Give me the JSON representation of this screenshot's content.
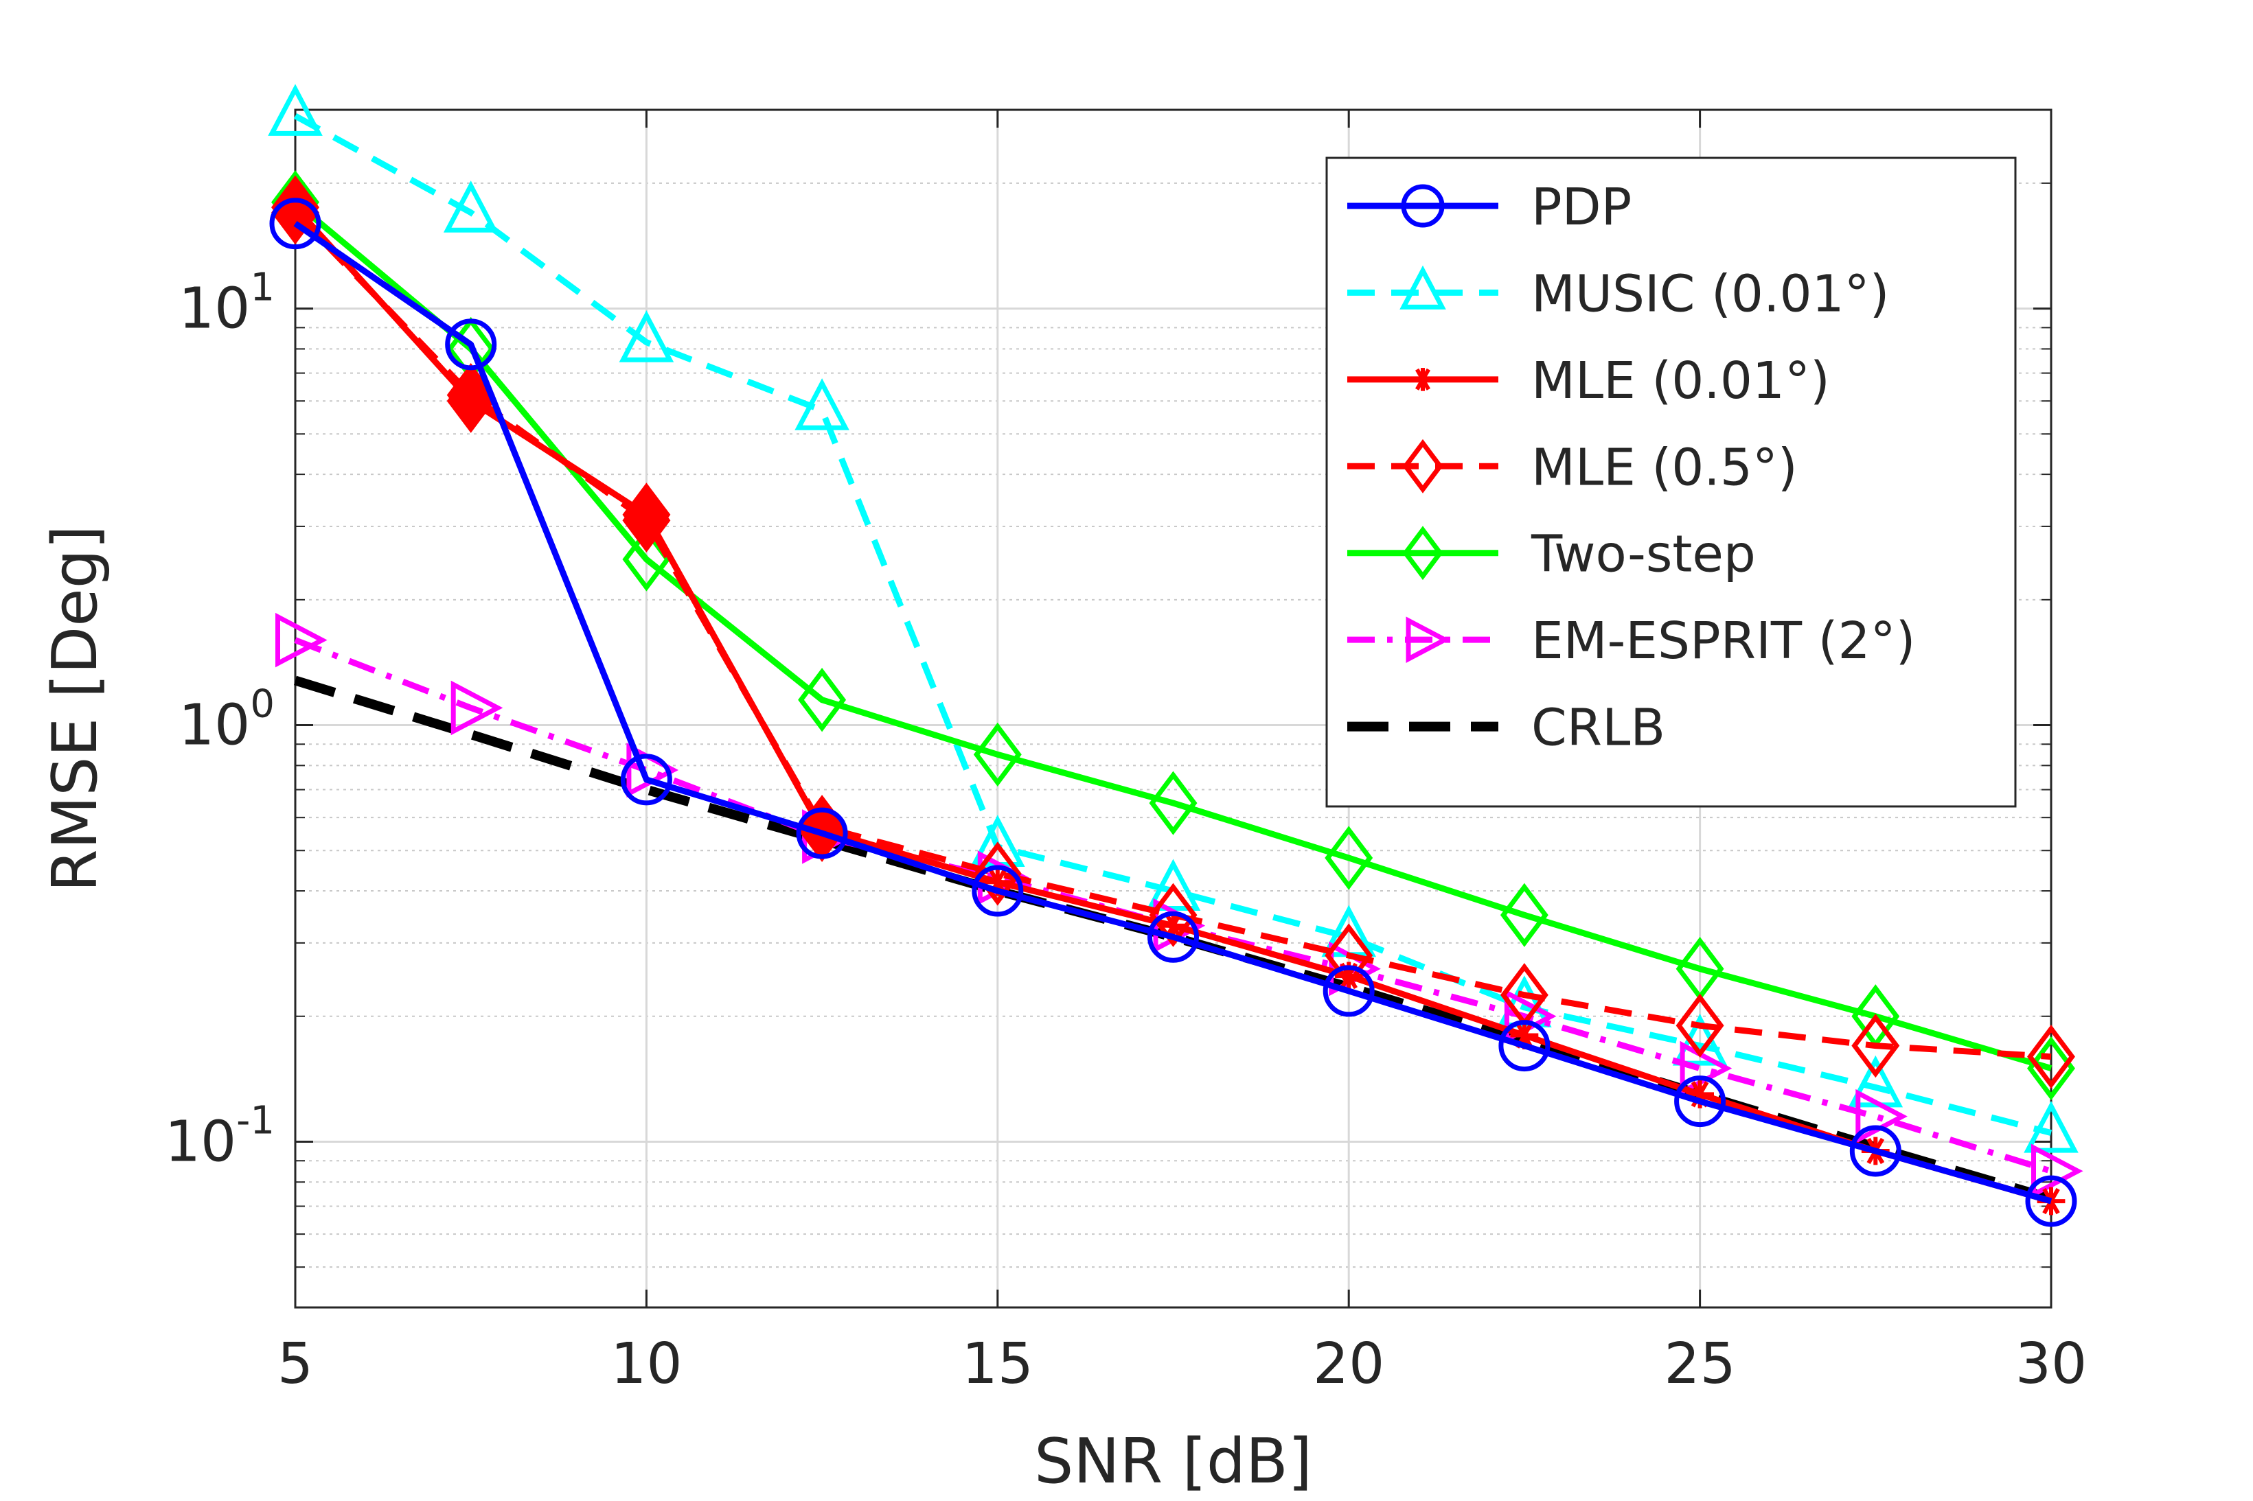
{
  "chart_data": {
    "type": "line",
    "xlabel": "SNR [dB]",
    "ylabel": "RMSE [Deg]",
    "xlim": [
      5,
      30
    ],
    "ylim": [
      0.04,
      30
    ],
    "yscale": "log",
    "grid": true,
    "legend_position": "top-right",
    "x_ticks": [
      "5",
      "10",
      "15",
      "20",
      "25",
      "30"
    ],
    "y_ticks": [
      {
        "base": "10",
        "exp": "-1",
        "value": 0.1
      },
      {
        "base": "10",
        "exp": "0",
        "value": 1
      },
      {
        "base": "10",
        "exp": "1",
        "value": 10
      }
    ],
    "x": [
      5,
      7.5,
      10,
      12.5,
      15,
      17.5,
      20,
      22.5,
      25,
      27.5,
      30
    ],
    "series": [
      {
        "name": "PDP",
        "color": "#0000ff",
        "dash": "solid",
        "marker": "circle",
        "values": [
          16,
          8.2,
          0.74,
          0.55,
          0.4,
          0.31,
          0.23,
          0.17,
          0.125,
          0.095,
          0.072
        ]
      },
      {
        "name": "MUSIC (0.01°)",
        "color": "#00ffff",
        "dash": "dashed",
        "marker": "triangle-up",
        "values": [
          29,
          17,
          8.3,
          5.7,
          0.51,
          0.4,
          0.31,
          0.21,
          0.17,
          0.135,
          0.105
        ]
      },
      {
        "name": "MLE (0.01°)",
        "color": "#ff0000",
        "dash": "solid",
        "marker": "asterisk",
        "values": [
          17.5,
          6,
          3.2,
          0.56,
          0.42,
          0.33,
          0.25,
          0.18,
          0.13,
          0.095,
          0.072
        ]
      },
      {
        "name": "MLE (0.5°)",
        "color": "#ff0000",
        "dash": "dashed",
        "marker": "diamond",
        "values": [
          17,
          6.2,
          3.1,
          0.57,
          0.44,
          0.35,
          0.28,
          0.225,
          0.19,
          0.17,
          0.16
        ]
      },
      {
        "name": "Two-step",
        "color": "#00ff00",
        "dash": "solid",
        "marker": "diamond",
        "values": [
          18,
          8,
          2.5,
          1.15,
          0.85,
          0.65,
          0.48,
          0.35,
          0.26,
          0.2,
          0.15
        ]
      },
      {
        "name": "EM-ESPRIT (2°)",
        "color": "#ff00ff",
        "dash": "dashdot",
        "marker": "triangle-right",
        "values": [
          1.6,
          1.1,
          0.78,
          0.54,
          0.43,
          0.33,
          0.26,
          0.2,
          0.15,
          0.115,
          0.085
        ]
      },
      {
        "name": "CRLB",
        "color": "#000000",
        "dash": "longdash",
        "marker": "none",
        "values": [
          1.28,
          0.95,
          0.7,
          0.53,
          0.4,
          0.31,
          0.235,
          0.175,
          0.13,
          0.097,
          0.073
        ]
      }
    ]
  }
}
